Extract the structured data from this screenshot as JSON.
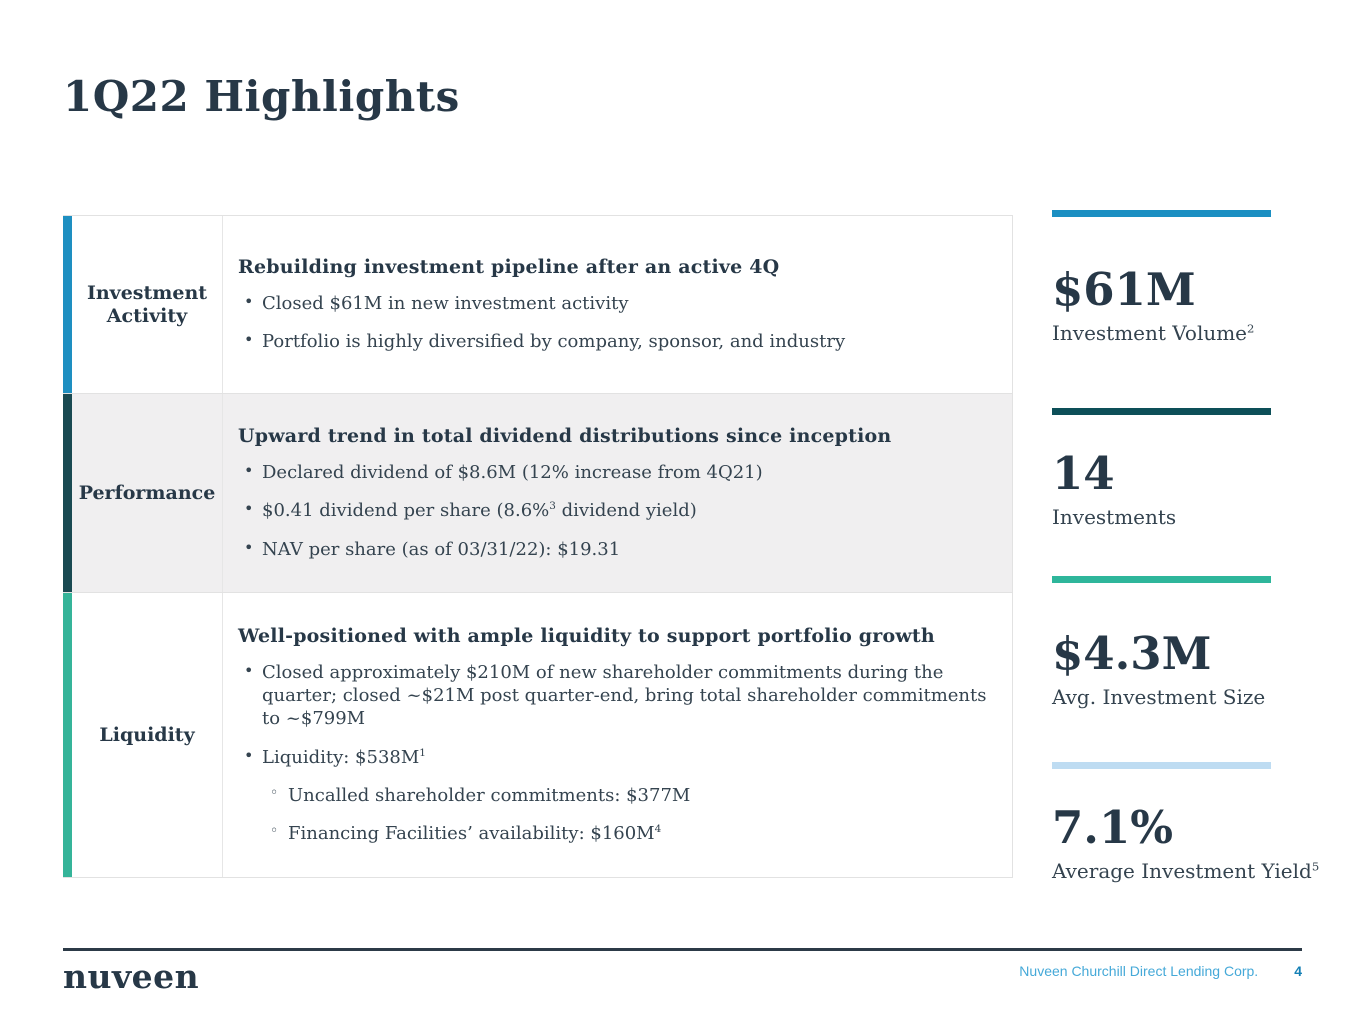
{
  "page": {
    "title": "1Q22 Highlights"
  },
  "table": {
    "rows": [
      {
        "label": "Investment Activity",
        "accent_color": "#1e8fc1",
        "heading": "Rebuilding investment pipeline after an active 4Q",
        "bullets": [
          {
            "level": 1,
            "segments": [
              {
                "t": "Closed $61M in new investment activity"
              }
            ]
          },
          {
            "level": 1,
            "segments": [
              {
                "t": "Portfolio is highly diversified by company, sponsor, and industry"
              }
            ]
          }
        ]
      },
      {
        "label": "Performance",
        "accent_color": "#1a4a52",
        "heading": "Upward trend in total dividend distributions since inception",
        "bullets": [
          {
            "level": 1,
            "segments": [
              {
                "t": "Declared dividend of $8.6M (12% increase from 4Q21)"
              }
            ]
          },
          {
            "level": 1,
            "segments": [
              {
                "t": "$0.41 dividend per share (8.6%"
              },
              {
                "t": "3",
                "sup": true
              },
              {
                "t": " dividend yield)"
              }
            ]
          },
          {
            "level": 1,
            "segments": [
              {
                "t": "NAV per share (as of 03/31/22): $19.31"
              }
            ]
          }
        ]
      },
      {
        "label": "Liquidity",
        "accent_color": "#35b499",
        "heading": "Well-positioned with ample liquidity to support portfolio growth",
        "bullets": [
          {
            "level": 1,
            "segments": [
              {
                "t": "Closed approximately $210M of new shareholder commitments during the quarter; closed ~$21M post quarter-end, bring total shareholder commitments to ~$799M"
              }
            ]
          },
          {
            "level": 1,
            "segments": [
              {
                "t": "Liquidity: $538M"
              },
              {
                "t": "1",
                "sup": true
              }
            ]
          },
          {
            "level": 2,
            "segments": [
              {
                "t": "Uncalled shareholder commitments: $377M"
              }
            ]
          },
          {
            "level": 2,
            "segments": [
              {
                "t": "Financing Facilities’ availability: $160M"
              },
              {
                "t": "4",
                "sup": true
              }
            ]
          }
        ]
      }
    ]
  },
  "stats": [
    {
      "bar_color": "#1b8fc2",
      "value": "$61M",
      "label": "Investment Volume",
      "label_sup": "2"
    },
    {
      "bar_color": "#0d4f58",
      "value": "14",
      "label": "Investments",
      "label_sup": ""
    },
    {
      "bar_color": "#2eb69b",
      "value": "$4.3M",
      "label": "Avg. Investment Size",
      "label_sup": ""
    },
    {
      "bar_color": "#bedcf2",
      "value": "7.1%",
      "label": "Average Investment Yield",
      "label_sup": "5"
    }
  ],
  "footer": {
    "logo": "nuveen",
    "company": "Nuveen Churchill Direct Lending Corp.",
    "page_number": "4"
  }
}
